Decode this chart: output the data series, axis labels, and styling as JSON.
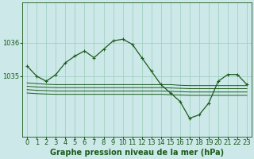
{
  "title": "Graphe pression niveau de la mer (hPa)",
  "bg_color": "#cce8e8",
  "grid_color": "#99ccbb",
  "line_color": "#1a5c1a",
  "ylim": [
    1033.2,
    1037.2
  ],
  "yticks": [
    1035,
    1036
  ],
  "xlim": [
    -0.5,
    23.5
  ],
  "xticks": [
    0,
    1,
    2,
    3,
    4,
    5,
    6,
    7,
    8,
    9,
    10,
    11,
    12,
    13,
    14,
    15,
    16,
    17,
    18,
    19,
    20,
    21,
    22,
    23
  ],
  "main_line": [
    1035.3,
    1035.0,
    1034.85,
    1035.05,
    1035.4,
    1035.6,
    1035.75,
    1035.55,
    1035.8,
    1036.05,
    1036.1,
    1035.95,
    1035.55,
    1035.15,
    1034.75,
    1034.5,
    1034.25,
    1033.75,
    1033.85,
    1034.2,
    1034.85,
    1035.05,
    1035.05,
    1034.75
  ],
  "line2": [
    1034.8,
    1034.78,
    1034.76,
    1034.75,
    1034.75,
    1034.75,
    1034.75,
    1034.75,
    1034.75,
    1034.75,
    1034.75,
    1034.75,
    1034.75,
    1034.75,
    1034.75,
    1034.75,
    1034.73,
    1034.72,
    1034.72,
    1034.72,
    1034.72,
    1034.72,
    1034.72,
    1034.72
  ],
  "line3": [
    1034.7,
    1034.68,
    1034.67,
    1034.66,
    1034.66,
    1034.66,
    1034.66,
    1034.66,
    1034.66,
    1034.66,
    1034.66,
    1034.66,
    1034.66,
    1034.66,
    1034.66,
    1034.65,
    1034.64,
    1034.63,
    1034.63,
    1034.63,
    1034.63,
    1034.63,
    1034.63,
    1034.63
  ],
  "line4": [
    1034.6,
    1034.58,
    1034.57,
    1034.56,
    1034.56,
    1034.56,
    1034.56,
    1034.56,
    1034.56,
    1034.56,
    1034.56,
    1034.56,
    1034.56,
    1034.56,
    1034.56,
    1034.55,
    1034.54,
    1034.53,
    1034.53,
    1034.53,
    1034.53,
    1034.53,
    1034.53,
    1034.53
  ],
  "line5": [
    1034.5,
    1034.48,
    1034.47,
    1034.46,
    1034.46,
    1034.46,
    1034.46,
    1034.46,
    1034.46,
    1034.46,
    1034.46,
    1034.46,
    1034.46,
    1034.46,
    1034.46,
    1034.45,
    1034.44,
    1034.43,
    1034.43,
    1034.43,
    1034.43,
    1034.43,
    1034.43,
    1034.43
  ],
  "title_fontsize": 7,
  "tick_fontsize": 6
}
